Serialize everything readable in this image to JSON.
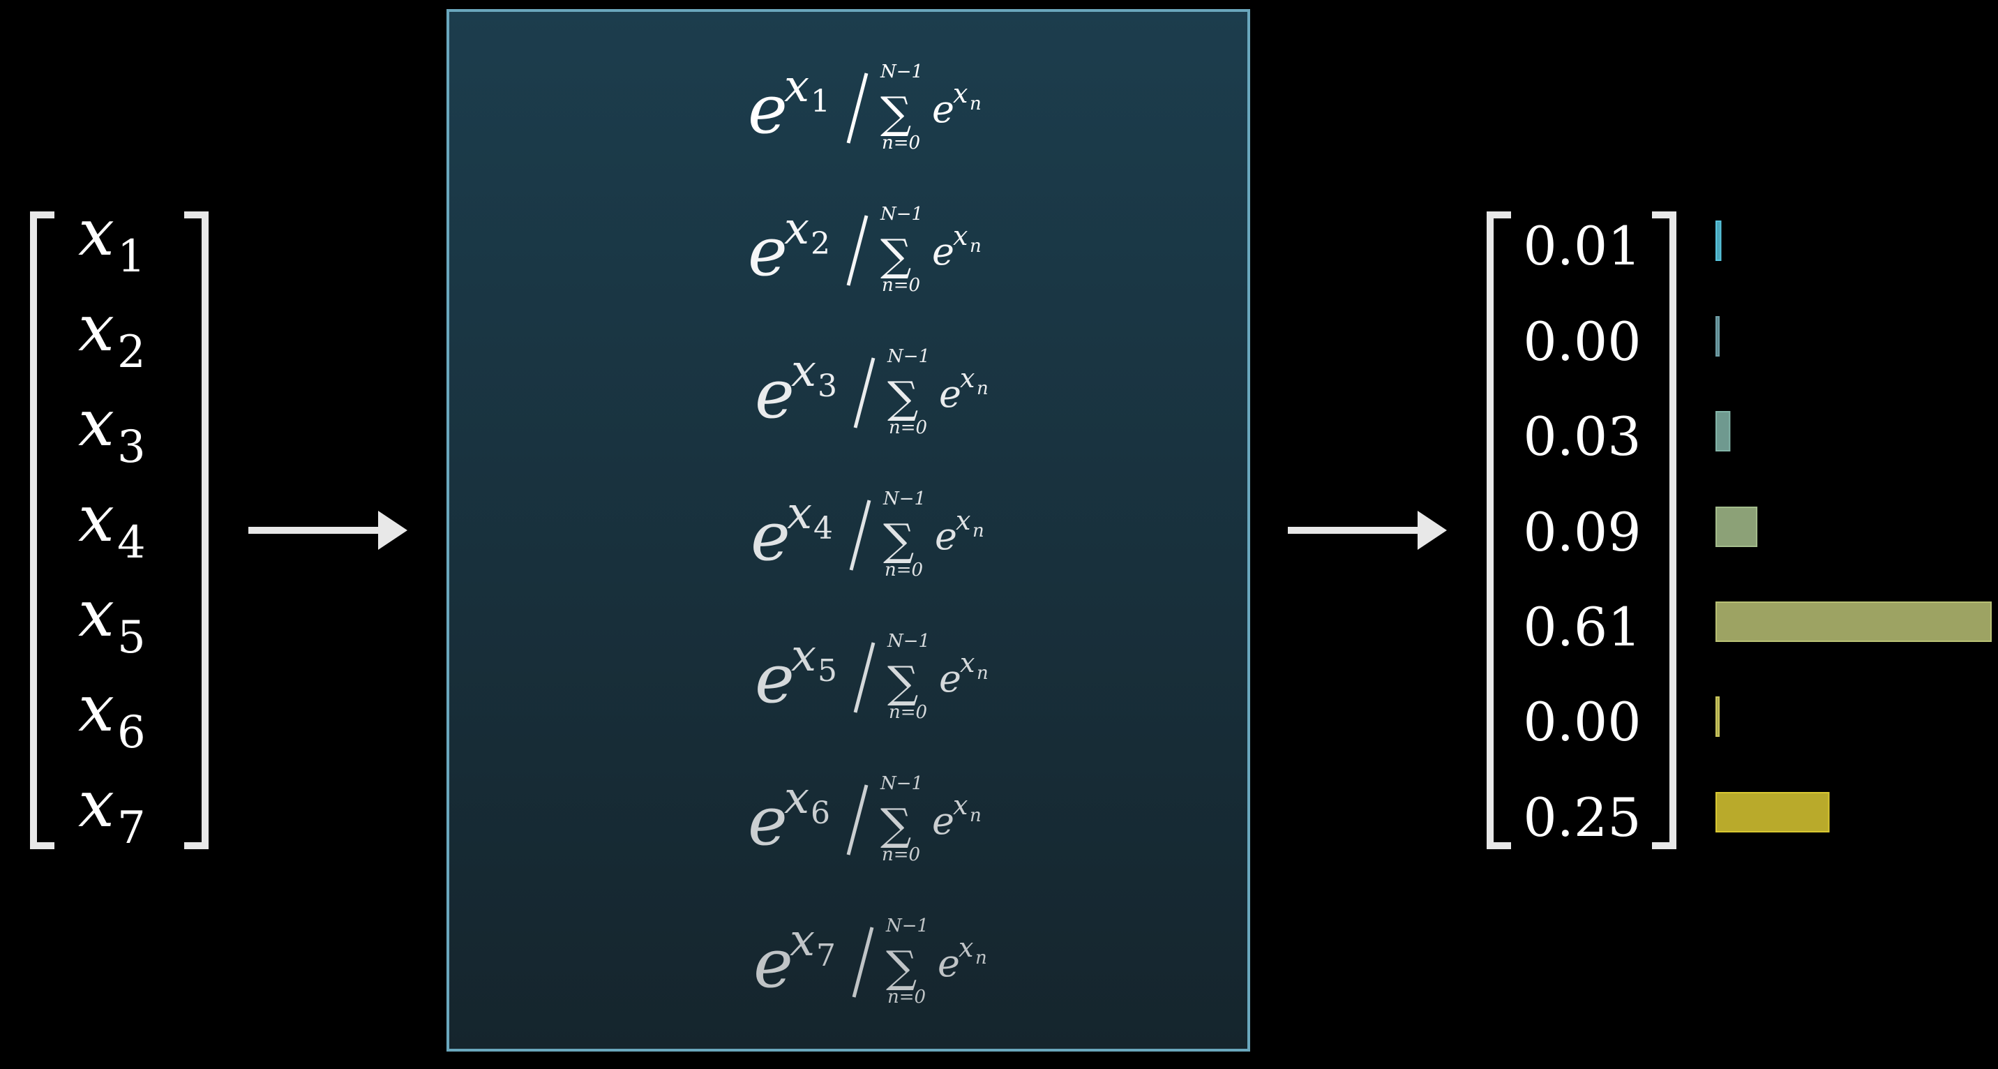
{
  "input_vector": {
    "items": [
      {
        "base": "x",
        "sub": "1"
      },
      {
        "base": "x",
        "sub": "2"
      },
      {
        "base": "x",
        "sub": "3"
      },
      {
        "base": "x",
        "sub": "4"
      },
      {
        "base": "x",
        "sub": "5"
      },
      {
        "base": "x",
        "sub": "6"
      },
      {
        "base": "x",
        "sub": "7"
      }
    ]
  },
  "formulas": {
    "base": "e",
    "exp_base": "x",
    "sum_symbol": "∑",
    "sum_upper": "N−1",
    "sum_lower": "n=0",
    "sum_term_base": "e",
    "sum_term_exp_base": "x",
    "sum_term_exp_sub": "n",
    "indices": [
      "1",
      "2",
      "3",
      "4",
      "5",
      "6",
      "7"
    ]
  },
  "output_vector": {
    "labels": [
      "0.01",
      "0.00",
      "0.03",
      "0.09",
      "0.61",
      "0.00",
      "0.25"
    ],
    "values": [
      0.01,
      0.0,
      0.03,
      0.09,
      0.61,
      0.0,
      0.25
    ],
    "bar_colors": [
      "#58C4DD",
      "#6e9ea6",
      "#83b4a8",
      "#a4bd8c",
      "#b8c074",
      "#c9c55c",
      "#d9c832"
    ]
  },
  "colors": {
    "box_fill_top": "#1c3d4d",
    "box_fill_bottom": "#15252d",
    "box_stroke": "#6aa7bd",
    "bracket": "#e8e8e8",
    "arrow": "#e8e8e8"
  }
}
